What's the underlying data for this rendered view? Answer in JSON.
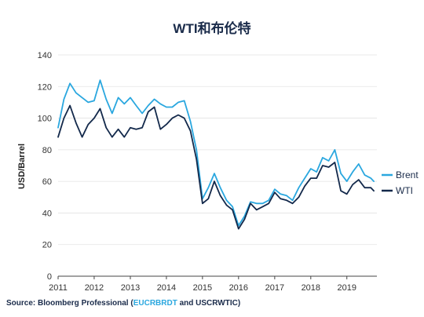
{
  "chart_data": {
    "type": "line",
    "title": "WTI和布伦特",
    "ylabel": "USD/Barrel",
    "xlabel": "",
    "ylim": [
      0,
      140
    ],
    "xlim": [
      "2011-01-01",
      "2019-11-01"
    ],
    "y_ticks": [
      0,
      20,
      40,
      60,
      80,
      100,
      120,
      140
    ],
    "x_ticks": [
      "2011",
      "2012",
      "2013",
      "2014",
      "2015",
      "2016",
      "2017",
      "2018",
      "2019"
    ],
    "grid": "horizontal",
    "legend_position": "right",
    "x": [
      "2011-01",
      "2011-03",
      "2011-05",
      "2011-07",
      "2011-09",
      "2011-11",
      "2012-01",
      "2012-03",
      "2012-05",
      "2012-07",
      "2012-09",
      "2012-11",
      "2013-01",
      "2013-03",
      "2013-05",
      "2013-07",
      "2013-09",
      "2013-11",
      "2014-01",
      "2014-03",
      "2014-05",
      "2014-07",
      "2014-09",
      "2014-11",
      "2015-01",
      "2015-03",
      "2015-05",
      "2015-07",
      "2015-09",
      "2015-11",
      "2016-01",
      "2016-03",
      "2016-05",
      "2016-07",
      "2016-09",
      "2016-11",
      "2017-01",
      "2017-03",
      "2017-05",
      "2017-07",
      "2017-09",
      "2017-11",
      "2018-01",
      "2018-03",
      "2018-05",
      "2018-07",
      "2018-09",
      "2018-11",
      "2019-01",
      "2019-03",
      "2019-05",
      "2019-07",
      "2019-09",
      "2019-10"
    ],
    "series": [
      {
        "name": "Brent",
        "color": "#2aa7df",
        "values": [
          94,
          112,
          122,
          116,
          113,
          110,
          111,
          124,
          112,
          103,
          113,
          109,
          113,
          108,
          103,
          108,
          112,
          109,
          107,
          107,
          110,
          111,
          98,
          80,
          49,
          56,
          65,
          56,
          48,
          44,
          32,
          38,
          47,
          46,
          46,
          48,
          55,
          52,
          51,
          48,
          56,
          62,
          68,
          66,
          75,
          73,
          80,
          65,
          60,
          66,
          71,
          64,
          62,
          60
        ]
      },
      {
        "name": "WTI",
        "color": "#13294b",
        "values": [
          88,
          100,
          108,
          97,
          88,
          96,
          100,
          106,
          94,
          88,
          93,
          88,
          94,
          93,
          94,
          104,
          107,
          93,
          96,
          100,
          102,
          100,
          92,
          74,
          46,
          49,
          60,
          51,
          45,
          42,
          30,
          36,
          46,
          42,
          44,
          46,
          53,
          49,
          48,
          46,
          50,
          57,
          62,
          62,
          70,
          69,
          72,
          54,
          52,
          58,
          61,
          56,
          56,
          54
        ]
      }
    ]
  },
  "source": {
    "prefix": "Source: Bloomberg Professional (",
    "code1": "EUCRBRDT",
    "middle": " and USCRWTIC)"
  }
}
